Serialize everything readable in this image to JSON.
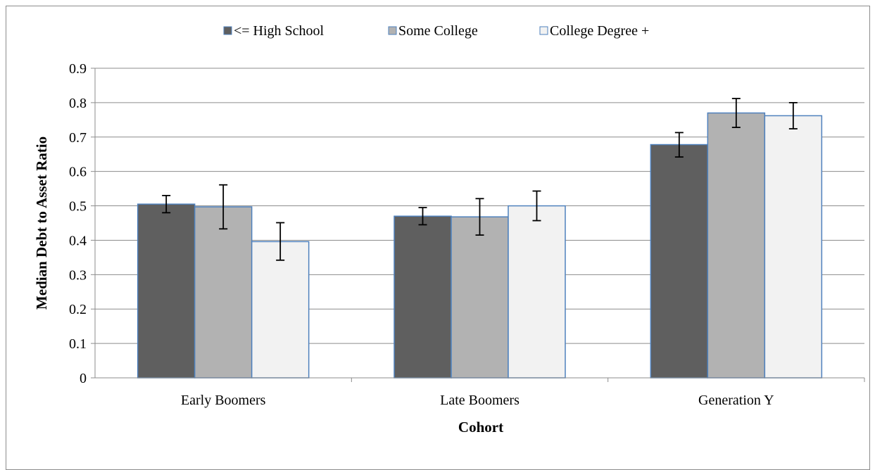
{
  "chart_data": {
    "type": "bar",
    "xlabel": "Cohort",
    "ylabel": "Median Debt to Asset Ratio",
    "ylim": [
      0,
      0.9
    ],
    "yticks": [
      0,
      0.1,
      0.2,
      0.3,
      0.4,
      0.5,
      0.6,
      0.7,
      0.8,
      0.9
    ],
    "ytick_labels": [
      "0",
      "0.1",
      "0.2",
      "0.3",
      "0.4",
      "0.5",
      "0.6",
      "0.7",
      "0.8",
      "0.9"
    ],
    "categories": [
      "Early Boomers",
      "Late Boomers",
      "Generation Y"
    ],
    "grid": true,
    "legend_position": "top",
    "series": [
      {
        "name": "<= High School",
        "color": "#5f5f5f",
        "values": [
          0.505,
          0.47,
          0.678
        ],
        "error_low": [
          0.48,
          0.445,
          0.642
        ],
        "error_high": [
          0.53,
          0.495,
          0.713
        ]
      },
      {
        "name": "Some College",
        "color": "#b2b2b2",
        "values": [
          0.497,
          0.468,
          0.77
        ],
        "error_low": [
          0.433,
          0.415,
          0.728
        ],
        "error_high": [
          0.561,
          0.521,
          0.812
        ]
      },
      {
        "name": "College Degree +",
        "color": "#f2f2f2",
        "values": [
          0.396,
          0.5,
          0.762
        ],
        "error_low": [
          0.342,
          0.457,
          0.724
        ],
        "error_high": [
          0.451,
          0.543,
          0.8
        ]
      }
    ],
    "bar_edge_color": "#4f81bd"
  }
}
